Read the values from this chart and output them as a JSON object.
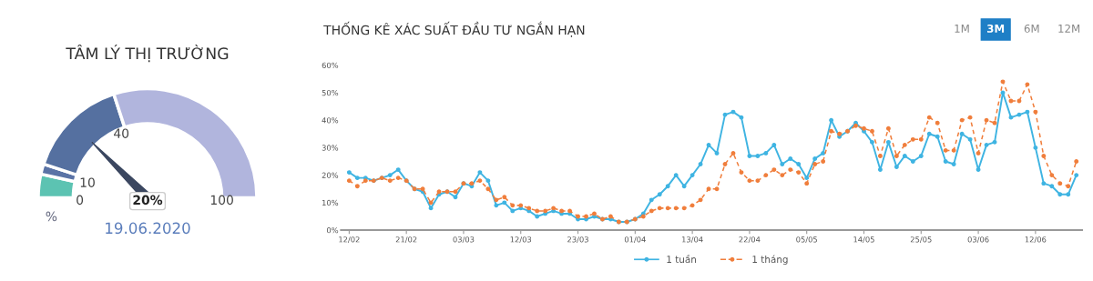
{
  "chart_data": [
    {
      "type": "donut",
      "title": "TÂM LÝ THỊ TRƯỜNG",
      "categories": [
        "0",
        null,
        "10",
        "40"
      ],
      "values": [
        7,
        3,
        30,
        60
      ],
      "colors": [
        "#5cc3b2",
        "#5a73a6",
        "#5570a0",
        "#b1b5dd"
      ],
      "needle": "10",
      "annotations": [
        "100",
        "%",
        "20%",
        "19.06.2020"
      ]
    },
    {
      "type": "line",
      "title": "THỐNG KÊ XÁC SUẤT ĐẦU TƯ NGẮN HẠN",
      "categories": [
        "12/02",
        null,
        null,
        null,
        null,
        null,
        null,
        "21/02",
        null,
        null,
        null,
        null,
        null,
        null,
        "03/03",
        null,
        null,
        null,
        null,
        null,
        null,
        "12/03",
        null,
        null,
        null,
        null,
        null,
        null,
        "23/03",
        null,
        null,
        null,
        null,
        null,
        null,
        "01/04",
        null,
        null,
        null,
        null,
        null,
        null,
        "13/04",
        null,
        null,
        null,
        null,
        null,
        null,
        "22/04",
        null,
        null,
        null,
        null,
        null,
        null,
        "05/05",
        null,
        null,
        null,
        null,
        null,
        null,
        "14/05",
        null,
        null,
        null,
        null,
        null,
        null,
        "25/05",
        null,
        null,
        null,
        null,
        null,
        null,
        "03/06",
        null,
        null,
        null,
        null,
        null,
        null,
        "12/06",
        null,
        null,
        null,
        null,
        null
      ],
      "series": [
        {
          "name": "1 tuần",
          "color": "#3fb4e2",
          "line_style": "solid",
          "values": [
            21,
            19,
            19,
            18,
            19,
            20,
            22,
            18,
            15,
            14,
            8,
            13,
            14,
            12,
            17,
            16,
            21,
            18,
            9,
            10,
            7,
            8,
            7,
            5,
            6,
            7,
            6,
            6,
            4,
            4,
            5,
            4,
            4,
            3,
            3,
            4,
            6,
            11,
            13,
            16,
            20,
            16,
            20,
            24,
            31,
            28,
            42,
            43,
            41,
            27,
            27,
            28,
            31,
            24,
            26,
            24,
            19,
            26,
            28,
            40,
            34,
            36,
            39,
            36,
            32,
            22,
            32,
            23,
            27,
            25,
            27,
            35,
            34,
            25,
            24,
            35,
            33,
            22,
            31,
            32,
            50,
            41,
            42,
            43,
            30,
            17,
            16,
            13,
            13,
            20
          ]
        },
        {
          "name": "1 tháng",
          "color": "#f07e3c",
          "line_style": "dashed",
          "values": [
            18,
            16,
            18,
            18,
            19,
            18,
            19,
            18,
            15,
            15,
            10,
            14,
            14,
            14,
            17,
            17,
            18,
            15,
            11,
            12,
            9,
            9,
            8,
            7,
            7,
            8,
            7,
            7,
            5,
            5,
            6,
            4,
            5,
            3,
            3,
            4,
            5,
            7,
            8,
            8,
            8,
            8,
            9,
            11,
            15,
            15,
            24,
            28,
            21,
            18,
            18,
            20,
            22,
            20,
            22,
            21,
            17,
            24,
            25,
            36,
            35,
            36,
            38,
            37,
            36,
            27,
            37,
            27,
            31,
            33,
            33,
            41,
            39,
            29,
            29,
            40,
            41,
            28,
            40,
            39,
            54,
            47,
            47,
            53,
            43,
            27,
            20,
            17,
            16,
            25
          ]
        }
      ],
      "ylim": [
        0,
        60
      ],
      "yticks": [
        {
          "value": 0,
          "label": "0%"
        },
        {
          "value": 10,
          "label": "10%"
        },
        {
          "value": 20,
          "label": "20%"
        },
        {
          "value": 30,
          "label": "30%"
        },
        {
          "value": 40,
          "label": "40%"
        },
        {
          "value": 50,
          "label": "50%"
        },
        {
          "value": 60,
          "label": "60%"
        }
      ],
      "marker": "circle",
      "grid": false,
      "legend": "bottom",
      "annotations": [
        "1M",
        "3M",
        "6M",
        "12M"
      ]
    }
  ]
}
